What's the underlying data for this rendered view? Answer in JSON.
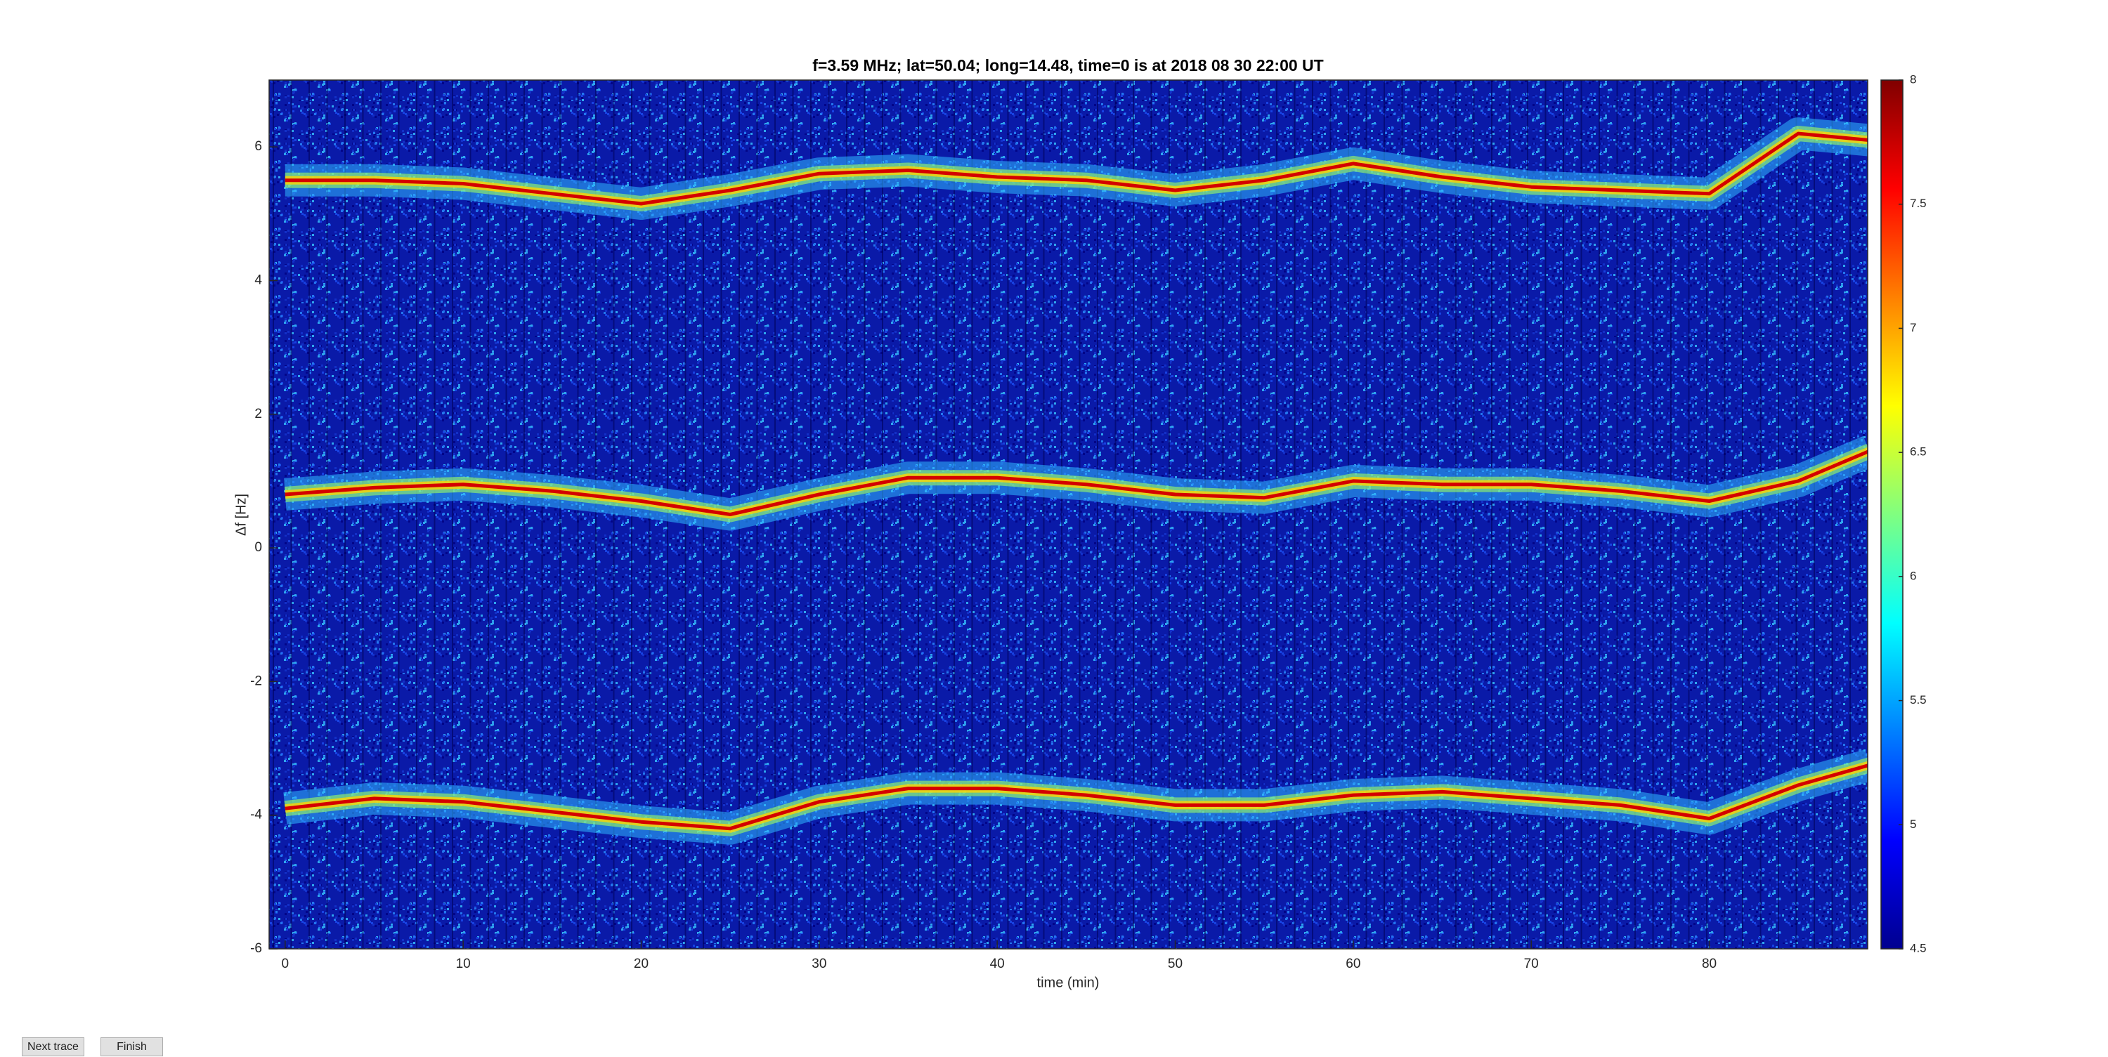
{
  "chart_data": {
    "type": "line",
    "title": "f=3.59 MHz;  lat=50.04; long=14.48, time=0 is at 2018 08 30 22:00 UT",
    "x_label": "time (min)",
    "y_label": "Δf [Hz]",
    "xlim": [
      -0.9,
      88.9
    ],
    "ylim": [
      -6,
      7
    ],
    "xticks": [
      0,
      10,
      20,
      30,
      40,
      50,
      60,
      70,
      80
    ],
    "yticks": [
      -6,
      -4,
      -2,
      0,
      2,
      4,
      6
    ],
    "grid": false,
    "background": "#0a1aa8",
    "x": [
      0,
      5,
      10,
      15,
      20,
      25,
      30,
      35,
      40,
      45,
      50,
      55,
      60,
      65,
      70,
      75,
      80,
      85,
      89
    ],
    "series": [
      {
        "color": "#d40000",
        "values": [
          5.5,
          5.5,
          5.45,
          5.3,
          5.15,
          5.35,
          5.6,
          5.65,
          5.55,
          5.5,
          5.35,
          5.5,
          5.75,
          5.55,
          5.4,
          5.35,
          5.3,
          6.2,
          6.1
        ]
      },
      {
        "color": "#d40000",
        "values": [
          0.8,
          0.9,
          0.95,
          0.85,
          0.7,
          0.5,
          0.8,
          1.05,
          1.05,
          0.95,
          0.8,
          0.75,
          1.0,
          0.95,
          0.95,
          0.85,
          0.7,
          1.0,
          1.45
        ]
      },
      {
        "color": "#d40000",
        "values": [
          -3.9,
          -3.75,
          -3.8,
          -3.95,
          -4.1,
          -4.2,
          -3.8,
          -3.6,
          -3.6,
          -3.7,
          -3.85,
          -3.85,
          -3.7,
          -3.65,
          -3.75,
          -3.85,
          -4.05,
          -3.55,
          -3.25
        ]
      }
    ],
    "colorbar": {
      "colormap": "jet",
      "lim": [
        4.5,
        8
      ],
      "ticks": [
        4.5,
        5,
        5.5,
        6,
        6.5,
        7,
        7.5,
        8
      ]
    }
  },
  "buttons": [
    "Next trace",
    "Finish"
  ]
}
